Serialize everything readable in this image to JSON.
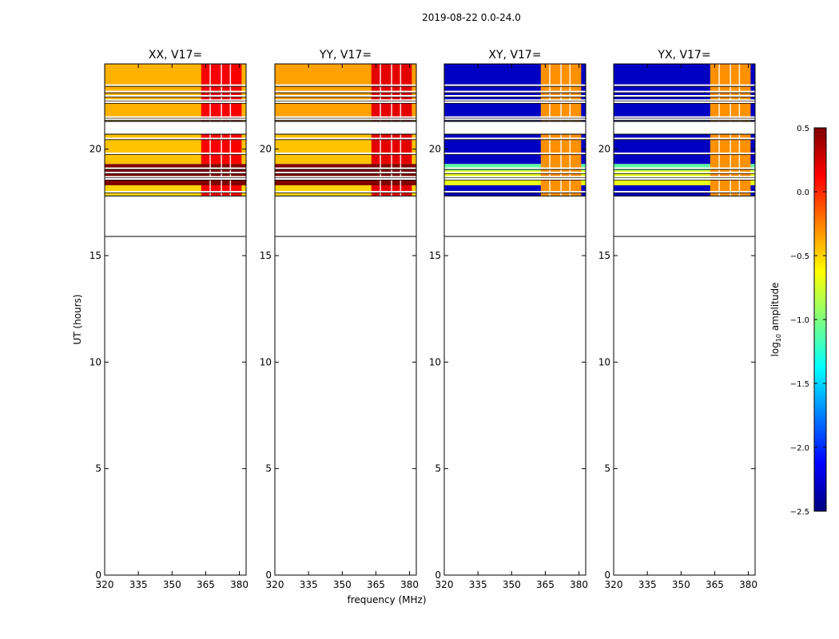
{
  "figure_title": "2019-08-22 0.0-24.0",
  "xlabel": "frequency (MHz)",
  "ylabel": "UT (hours)",
  "colorbar": {
    "label_prefix": "log",
    "label_sub": "10",
    "label_suffix": " amplitude",
    "ticks": [
      0.5,
      0.0,
      -0.5,
      -1.0,
      -1.5,
      -2.0,
      -2.5
    ],
    "tick_labels": [
      "0.5",
      "0.0",
      "−0.5",
      "−1.0",
      "−1.5",
      "−2.0",
      "−2.5"
    ],
    "vmin": -2.5,
    "vmax": 0.5,
    "colormap": "jet",
    "colors": [
      "#00007f",
      "#0000ff",
      "#007fff",
      "#00ffff",
      "#7fff7f",
      "#ffff00",
      "#ff7f00",
      "#ff0000",
      "#7f0000"
    ]
  },
  "chart_data": {
    "type": "heatmap",
    "xlim": [
      320,
      383
    ],
    "ylim": [
      0,
      24
    ],
    "xticks": [
      320,
      335,
      350,
      365,
      380
    ],
    "xtick_labels": [
      "320",
      "335",
      "350",
      "365",
      "380"
    ],
    "yticks": [
      0,
      5,
      10,
      15,
      20
    ],
    "ytick_labels": [
      "0",
      "5",
      "10",
      "15",
      "20"
    ],
    "data_start_hour": 15.9,
    "rfi_band_mhz": [
      363,
      381
    ],
    "rfi_gaps_mhz": [
      367,
      372,
      376
    ],
    "panels": [
      {
        "title": "XX, V17=",
        "base_value": -0.5,
        "rfi_value": 0.15,
        "bands": [
          {
            "y0": 21.3,
            "y1": 24.0,
            "value": -0.4
          },
          {
            "y0": 19.3,
            "y1": 20.7,
            "value": -0.45
          },
          {
            "y0": 18.3,
            "y1": 19.3,
            "value": 0.5
          },
          {
            "y0": 17.8,
            "y1": 18.3,
            "value": -0.5
          }
        ],
        "blank_lines_hours": [
          23.0,
          22.7,
          22.5,
          22.3,
          22.2,
          21.5,
          21.4,
          20.9,
          20.5,
          19.8,
          19.1,
          18.9,
          18.7,
          18.6,
          18.0
        ]
      },
      {
        "title": "YY, V17=",
        "base_value": -0.45,
        "rfi_value": 0.2,
        "bands": [
          {
            "y0": 21.3,
            "y1": 24.0,
            "value": -0.35
          },
          {
            "y0": 19.3,
            "y1": 20.7,
            "value": -0.45
          },
          {
            "y0": 18.3,
            "y1": 19.3,
            "value": 0.5
          },
          {
            "y0": 17.8,
            "y1": 18.3,
            "value": -0.5
          }
        ],
        "blank_lines_hours": [
          23.0,
          22.7,
          22.5,
          22.3,
          22.2,
          21.5,
          21.4,
          20.9,
          20.5,
          19.8,
          19.1,
          18.9,
          18.7,
          18.6,
          18.0
        ]
      },
      {
        "title": "XY, V17=",
        "base_value": -2.3,
        "rfi_value": -0.3,
        "bands": [
          {
            "y0": 21.3,
            "y1": 24.0,
            "value": -2.3
          },
          {
            "y0": 19.3,
            "y1": 20.7,
            "value": -2.3
          },
          {
            "y0": 19.0,
            "y1": 19.3,
            "value": -1.1
          },
          {
            "y0": 18.3,
            "y1": 19.0,
            "value": -0.7
          },
          {
            "y0": 17.8,
            "y1": 18.3,
            "value": -2.3
          }
        ],
        "blank_lines_hours": [
          23.0,
          22.7,
          22.5,
          22.3,
          22.2,
          21.5,
          21.4,
          20.9,
          20.5,
          19.8,
          19.1,
          18.9,
          18.7,
          18.6,
          18.0
        ]
      },
      {
        "title": "YX, V17=",
        "base_value": -2.3,
        "rfi_value": -0.3,
        "bands": [
          {
            "y0": 21.3,
            "y1": 24.0,
            "value": -2.3
          },
          {
            "y0": 19.3,
            "y1": 20.7,
            "value": -2.3
          },
          {
            "y0": 19.0,
            "y1": 19.3,
            "value": -1.1
          },
          {
            "y0": 18.3,
            "y1": 19.0,
            "value": -0.7
          },
          {
            "y0": 17.8,
            "y1": 18.3,
            "value": -2.3
          }
        ],
        "blank_lines_hours": [
          23.0,
          22.7,
          22.5,
          22.3,
          22.2,
          21.5,
          21.4,
          20.9,
          20.5,
          19.8,
          19.1,
          18.9,
          18.7,
          18.6,
          18.0
        ]
      }
    ]
  }
}
